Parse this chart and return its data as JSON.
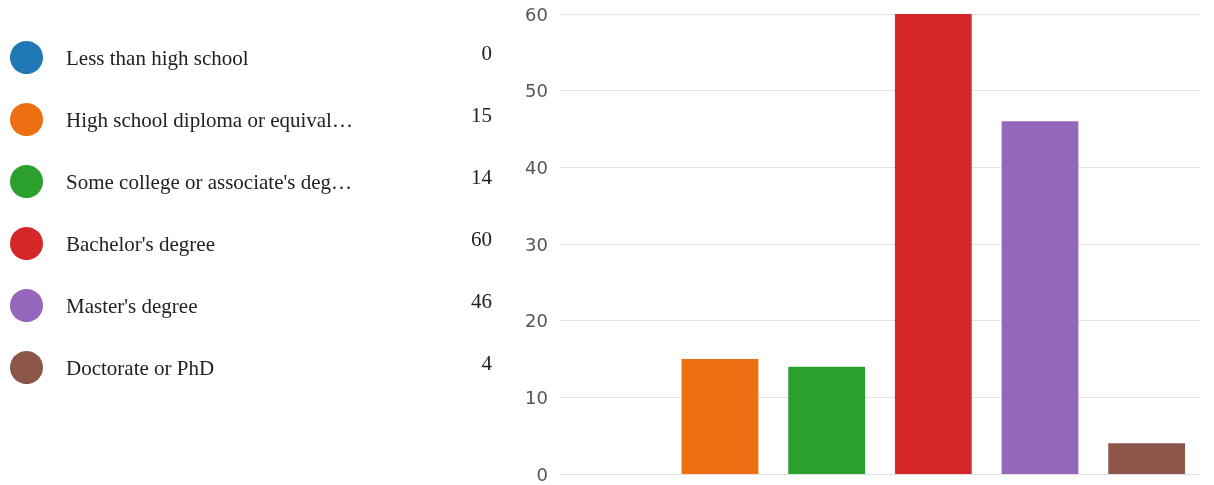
{
  "chart_data": {
    "type": "bar",
    "categories": [
      null,
      null,
      null,
      null,
      null,
      null
    ],
    "series": [
      {
        "name": "Less than high school",
        "color": "#1f77b4",
        "values": [
          0,
          null,
          null,
          null,
          null,
          null
        ]
      },
      {
        "name": "High school diploma or equival…",
        "color": "#ec7011",
        "values": [
          null,
          15,
          null,
          null,
          null,
          null
        ]
      },
      {
        "name": "Some college or associate's deg…",
        "color": "#2ca02c",
        "values": [
          null,
          null,
          14,
          null,
          null,
          null
        ]
      },
      {
        "name": "Bachelor's degree",
        "color": "#d62728",
        "values": [
          null,
          null,
          null,
          60,
          null,
          null
        ]
      },
      {
        "name": "Master's degree",
        "color": "#9467bd",
        "values": [
          null,
          null,
          null,
          null,
          46,
          null
        ]
      },
      {
        "name": "Doctorate or PhD",
        "color": "#8c564b",
        "values": [
          null,
          null,
          null,
          null,
          null,
          4
        ]
      }
    ],
    "stacked": true,
    "annotations": [
      "0",
      "15",
      "14",
      "60",
      "46",
      "4"
    ],
    "ylim": [
      0,
      60
    ],
    "yticks": [
      0,
      10,
      20,
      30,
      40,
      50,
      60
    ],
    "grid": "y",
    "legend": "left",
    "tick_labels": "y"
  }
}
